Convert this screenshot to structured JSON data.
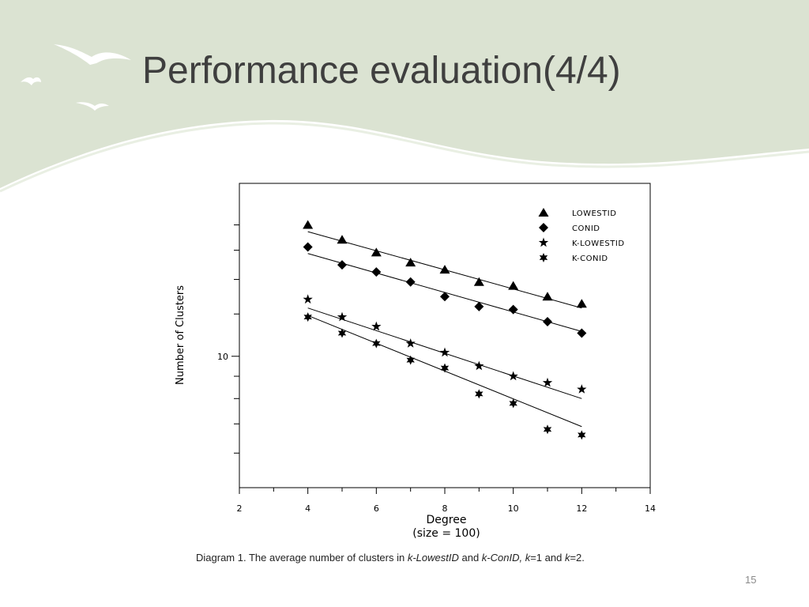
{
  "slide": {
    "title": "Performance evaluation(4/4)",
    "page_number": "15",
    "caption": {
      "prefix": "Diagram 1. The average number of clusters in ",
      "term1": "k-LowestID",
      "and1": " and ",
      "term2": "k-ConID,",
      "sp": " ",
      "k1": "k",
      "eq1": "=1 and ",
      "k2": "k",
      "eq2": "=2."
    },
    "colors": {
      "header_green": "#dbe3d2",
      "title": "#3f3f3f",
      "bird": "#ffffff"
    }
  },
  "chart_data": {
    "type": "scatter",
    "xlabel": "Degree",
    "xlabel_sub": "(size = 100)",
    "ylabel": "Number of Clusters",
    "y_scale": "log",
    "xlim": [
      2,
      14
    ],
    "ylim": [
      5.0,
      24.9
    ],
    "x_ticks": [
      2,
      4,
      6,
      8,
      10,
      12,
      14
    ],
    "y_tick_labels": [
      {
        "value": 10,
        "label": "10"
      }
    ],
    "legend_position": "top-right",
    "series": [
      {
        "name": "LOWESTID",
        "marker": "triangle",
        "points": [
          [
            4,
            20.0
          ],
          [
            5,
            18.5
          ],
          [
            6,
            17.3
          ],
          [
            7,
            16.4
          ],
          [
            8,
            15.8
          ],
          [
            9,
            14.8
          ],
          [
            10,
            14.5
          ],
          [
            11,
            13.7
          ],
          [
            12,
            13.2
          ]
        ],
        "fit": [
          [
            4,
            19.3
          ],
          [
            12,
            12.9
          ]
        ]
      },
      {
        "name": "CONID",
        "marker": "diamond",
        "points": [
          [
            4,
            17.8
          ],
          [
            5,
            16.2
          ],
          [
            6,
            15.6
          ],
          [
            7,
            14.8
          ],
          [
            8,
            13.7
          ],
          [
            9,
            13.0
          ],
          [
            10,
            12.8
          ],
          [
            11,
            12.0
          ],
          [
            12,
            11.3
          ]
        ],
        "fit": [
          [
            4,
            17.2
          ],
          [
            12,
            11.4
          ]
        ]
      },
      {
        "name": "K-LOWESTID",
        "marker": "star5",
        "points": [
          [
            4,
            13.5
          ],
          [
            5,
            12.3
          ],
          [
            6,
            11.7
          ],
          [
            7,
            10.7
          ],
          [
            8,
            10.2
          ],
          [
            9,
            9.5
          ],
          [
            10,
            9.0
          ],
          [
            11,
            8.7
          ],
          [
            12,
            8.4
          ]
        ],
        "fit": [
          [
            4,
            12.9
          ],
          [
            12,
            8.0
          ]
        ]
      },
      {
        "name": "K-CONID",
        "marker": "star6",
        "points": [
          [
            4,
            12.3
          ],
          [
            5,
            11.3
          ],
          [
            6,
            10.7
          ],
          [
            7,
            9.8
          ],
          [
            8,
            9.4
          ],
          [
            9,
            8.2
          ],
          [
            10,
            7.8
          ],
          [
            11,
            6.8
          ],
          [
            12,
            6.6
          ]
        ],
        "fit": [
          [
            4,
            12.4
          ],
          [
            12,
            6.9
          ]
        ]
      }
    ]
  }
}
